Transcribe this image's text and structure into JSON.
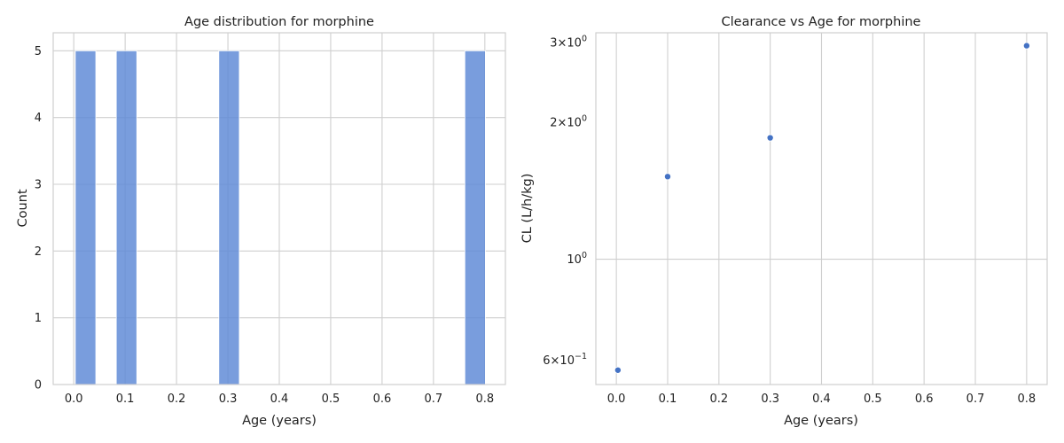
{
  "chart_data": [
    {
      "type": "bar",
      "title": "Age distribution for morphine",
      "xlabel": "Age (years)",
      "ylabel": "Count",
      "xlim": [
        -0.04,
        0.84
      ],
      "ylim": [
        0,
        5.27
      ],
      "xticks": [
        0.0,
        0.1,
        0.2,
        0.3,
        0.4,
        0.5,
        0.6,
        0.7,
        0.8
      ],
      "xtick_labels": [
        "0.0",
        "0.1",
        "0.2",
        "0.3",
        "0.4",
        "0.5",
        "0.6",
        "0.7",
        "0.8"
      ],
      "yticks": [
        0,
        1,
        2,
        3,
        4,
        5
      ],
      "ytick_labels": [
        "0",
        "1",
        "2",
        "3",
        "4",
        "5"
      ],
      "bars": [
        {
          "x0": 0.003,
          "x1": 0.0429,
          "value": 5
        },
        {
          "x0": 0.0828,
          "x1": 0.1227,
          "value": 5
        },
        {
          "x0": 0.2823,
          "x1": 0.3222,
          "value": 5
        },
        {
          "x0": 0.7611,
          "x1": 0.801,
          "value": 5
        }
      ],
      "color": "#5b87d6",
      "grid": true
    },
    {
      "type": "scatter",
      "title": "Clearance vs Age for morphine",
      "xlabel": "Age (years)",
      "ylabel": "CL (L/h/kg)",
      "xscale": "linear",
      "yscale": "log",
      "xlim": [
        -0.04,
        0.84
      ],
      "ylim": [
        0.53,
        3.15
      ],
      "xticks": [
        0.0,
        0.1,
        0.2,
        0.3,
        0.4,
        0.5,
        0.6,
        0.7,
        0.8
      ],
      "xtick_labels": [
        "0.0",
        "0.1",
        "0.2",
        "0.3",
        "0.4",
        "0.5",
        "0.6",
        "0.7",
        "0.8"
      ],
      "yticks": [
        {
          "value": 0.6,
          "mantissa": "6",
          "base": "10",
          "exp": "−1"
        },
        {
          "value": 1,
          "mantissa": "",
          "base": "10",
          "exp": "0"
        },
        {
          "value": 2,
          "mantissa": "2",
          "base": "10",
          "exp": "0"
        },
        {
          "value": 3,
          "mantissa": "3",
          "base": "10",
          "exp": "0"
        }
      ],
      "x": [
        0.003,
        0.1,
        0.3,
        0.8
      ],
      "y": [
        0.57,
        1.52,
        1.85,
        2.95
      ],
      "color": "#4472c4",
      "grid": true
    }
  ]
}
